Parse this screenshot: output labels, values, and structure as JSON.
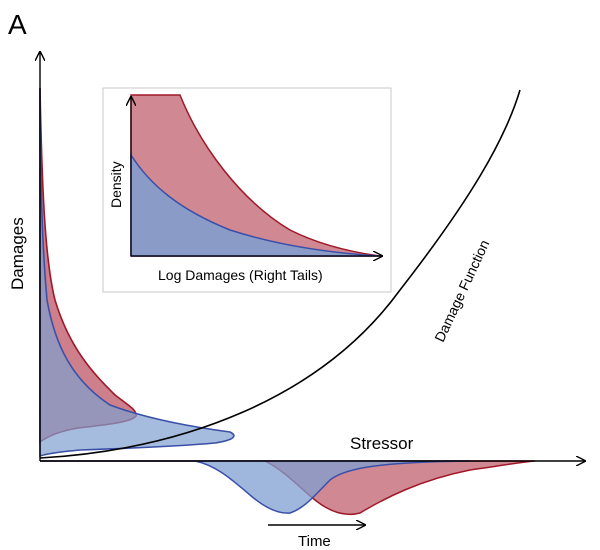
{
  "panel_label": "A",
  "labels": {
    "y_axis": "Damages",
    "x_axis": "Stressor",
    "time": "Time",
    "damage_function": "Damage Function"
  },
  "inset": {
    "xlabel": "Log Damages (Right Tails)",
    "ylabel": "Density"
  },
  "colors": {
    "red_fill": "#c0606e",
    "red_line": "#a01828",
    "blue_fill": "#7f9fd0",
    "blue_line": "#3a4fa8",
    "axis": "#000000"
  }
}
